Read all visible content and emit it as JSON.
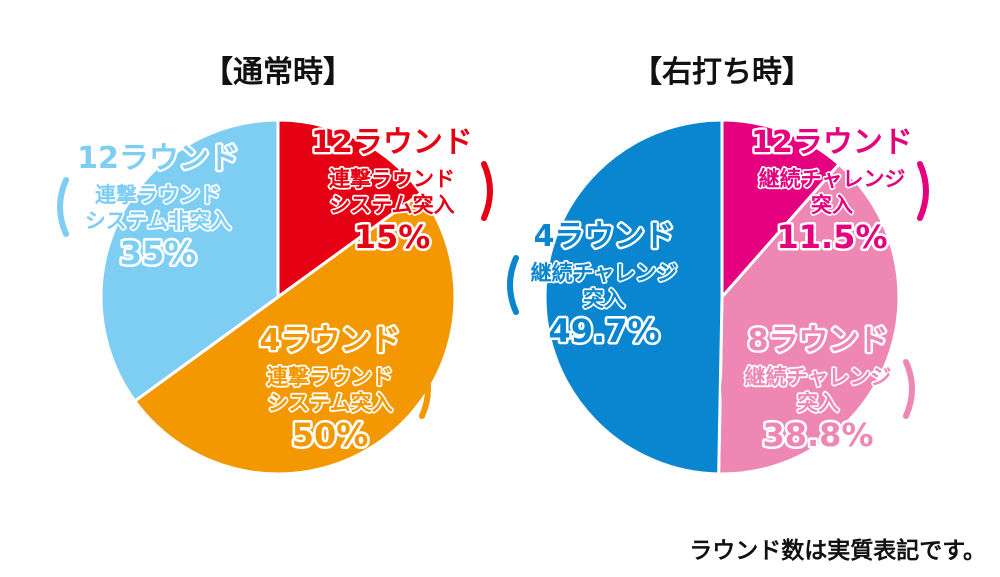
{
  "chart_data": [
    {
      "type": "pie",
      "title": "【通常時】",
      "slices": [
        {
          "label_main": "12ラウンド",
          "label_sub": [
            "連撃ラウンド",
            "システム突入"
          ],
          "value": 15,
          "value_label": "15%",
          "color": "#e60013"
        },
        {
          "label_main": "4ラウンド",
          "label_sub": [
            "連撃ラウンド",
            "システム突入"
          ],
          "value": 50,
          "value_label": "50%",
          "color": "#f39800"
        },
        {
          "label_main": "12ラウンド",
          "label_sub": [
            "連撃ラウンド",
            "システム非突入"
          ],
          "value": 35,
          "value_label": "35%",
          "color": "#7ecef4"
        }
      ]
    },
    {
      "type": "pie",
      "title": "【右打ち時】",
      "slices": [
        {
          "label_main": "12ラウンド",
          "label_sub": [
            "継続チャレンジ",
            "突入"
          ],
          "value": 11.5,
          "value_label": "11.5%",
          "color": "#e4007f"
        },
        {
          "label_main": "8ラウンド",
          "label_sub": [
            "継続チャレンジ",
            "突入"
          ],
          "value": 38.8,
          "value_label": "38.8%",
          "color": "#ee87b4"
        },
        {
          "label_main": "4ラウンド",
          "label_sub": [
            "継続チャレンジ",
            "突入"
          ],
          "value": 49.7,
          "value_label": "49.7%",
          "color": "#0a86d0"
        }
      ]
    }
  ],
  "footnote": "ラウンド数は実質表記です。"
}
